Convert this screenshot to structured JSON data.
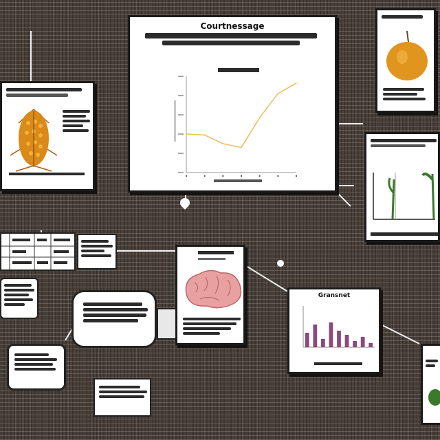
{
  "main_chart": {
    "title_line_1": "Courtnessage",
    "chart_data": {
      "type": "line",
      "x": [
        1,
        2,
        3,
        4,
        5,
        6,
        7
      ],
      "series": [
        {
          "values": [
            0.4,
            0.39,
            0.3,
            0.26,
            0.57,
            0.82,
            0.93
          ]
        }
      ],
      "ylim": [
        0,
        1
      ],
      "grid": false,
      "line_color": "#e8c060"
    }
  },
  "bar_chart": {
    "title": "Gransnet",
    "chart_data": {
      "type": "bar",
      "categories": [
        "a",
        "b",
        "c",
        "d",
        "e",
        "f",
        "g",
        "h",
        "i"
      ],
      "values": [
        0.35,
        0.55,
        0.2,
        0.6,
        0.4,
        0.3,
        0.15,
        0.25,
        0.1
      ],
      "ylim": [
        0,
        1
      ],
      "bar_color": "#8a4a7a"
    }
  },
  "colors": {
    "background": "#4a403a",
    "corn_orange": "#d98a18",
    "plant_green": "#3a7a2a",
    "brain_pink": "#e8a0a0"
  },
  "icons": {
    "corn": "corn-cob-illustration",
    "fruit": "orange-fruit-illustration",
    "brain": "brain-illustration",
    "plant": "seedling-illustration"
  }
}
